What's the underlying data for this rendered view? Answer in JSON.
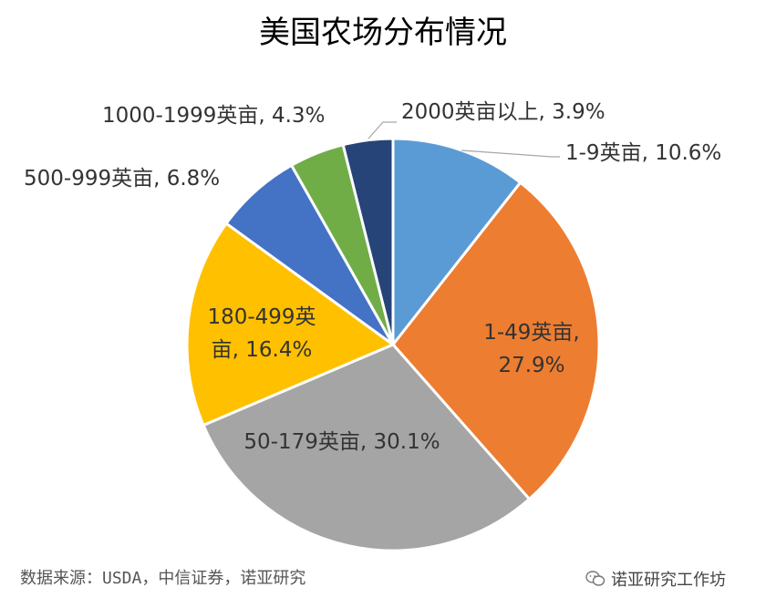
{
  "chart_data": {
    "type": "pie",
    "title": "美国农场分布情况",
    "slices": [
      {
        "label": "1-9英亩, 10.6%",
        "value": 10.6,
        "color": "#5B9BD5"
      },
      {
        "label": "1-49英亩, 27.9%",
        "value": 27.9,
        "color": "#ED7D31"
      },
      {
        "label": "50-179英亩, 30.1%",
        "value": 30.1,
        "color": "#A5A5A5"
      },
      {
        "label": "180-499英亩, 16.4%",
        "value": 16.4,
        "color": "#FFC000"
      },
      {
        "label": "500-999英亩, 6.8%",
        "value": 6.8,
        "color": "#4472C4"
      },
      {
        "label": "1000-1999英亩, 4.3%",
        "value": 4.3,
        "color": "#70AD47"
      },
      {
        "label": "2000英亩以上, 3.9%",
        "value": 3.9,
        "color": "#264478"
      }
    ]
  },
  "source": "数据来源：USDA，中信证券，诺亚研究",
  "watermark": {
    "icon": "wechat-icon",
    "text": "诺亚研究工作坊"
  }
}
